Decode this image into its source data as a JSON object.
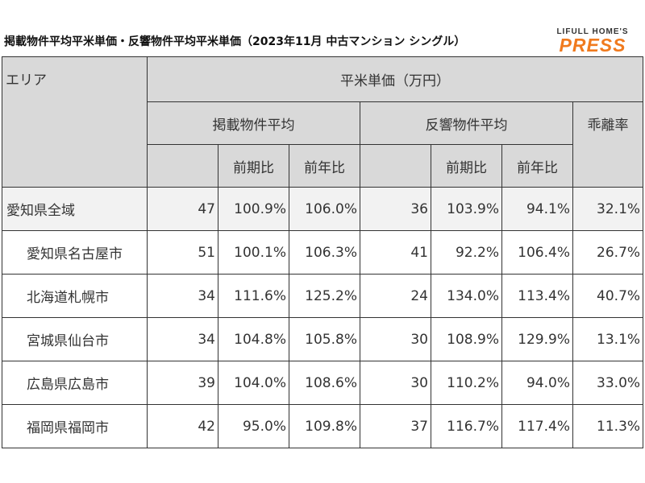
{
  "title": "掲載物件平均平米単価・反響物件平均平米単価（2023年11月 中古マンション シングル）",
  "logo": {
    "top": "LIFULL HOME'S",
    "main": "PRESS"
  },
  "colors": {
    "header_bg": "#d9d9d9",
    "first_row_bg": "#f2f2f2",
    "logo_orange": "#f07a1e"
  },
  "headers": {
    "area": "エリア",
    "unit_price": "平米単価（万円）",
    "listed_avg": "掲載物件平均",
    "response_avg": "反響物件平均",
    "divergence": "乖離率",
    "prev_period": "前期比",
    "prev_year": "前年比"
  },
  "rows": [
    {
      "area": "愛知県全域",
      "listed": "47",
      "listed_prev_period": "100.9%",
      "listed_prev_year": "106.0%",
      "response": "36",
      "response_prev_period": "103.9%",
      "response_prev_year": "94.1%",
      "divergence": "32.1%"
    },
    {
      "area": "愛知県名古屋市",
      "listed": "51",
      "listed_prev_period": "100.1%",
      "listed_prev_year": "106.3%",
      "response": "41",
      "response_prev_period": "92.2%",
      "response_prev_year": "106.4%",
      "divergence": "26.7%"
    },
    {
      "area": "北海道札幌市",
      "listed": "34",
      "listed_prev_period": "111.6%",
      "listed_prev_year": "125.2%",
      "response": "24",
      "response_prev_period": "134.0%",
      "response_prev_year": "113.4%",
      "divergence": "40.7%"
    },
    {
      "area": "宮城県仙台市",
      "listed": "34",
      "listed_prev_period": "104.8%",
      "listed_prev_year": "105.8%",
      "response": "30",
      "response_prev_period": "108.9%",
      "response_prev_year": "129.9%",
      "divergence": "13.1%"
    },
    {
      "area": "広島県広島市",
      "listed": "39",
      "listed_prev_period": "104.0%",
      "listed_prev_year": "108.6%",
      "response": "30",
      "response_prev_period": "110.2%",
      "response_prev_year": "94.0%",
      "divergence": "33.0%"
    },
    {
      "area": "福岡県福岡市",
      "listed": "42",
      "listed_prev_period": "95.0%",
      "listed_prev_year": "109.8%",
      "response": "37",
      "response_prev_period": "116.7%",
      "response_prev_year": "117.4%",
      "divergence": "11.3%"
    }
  ]
}
